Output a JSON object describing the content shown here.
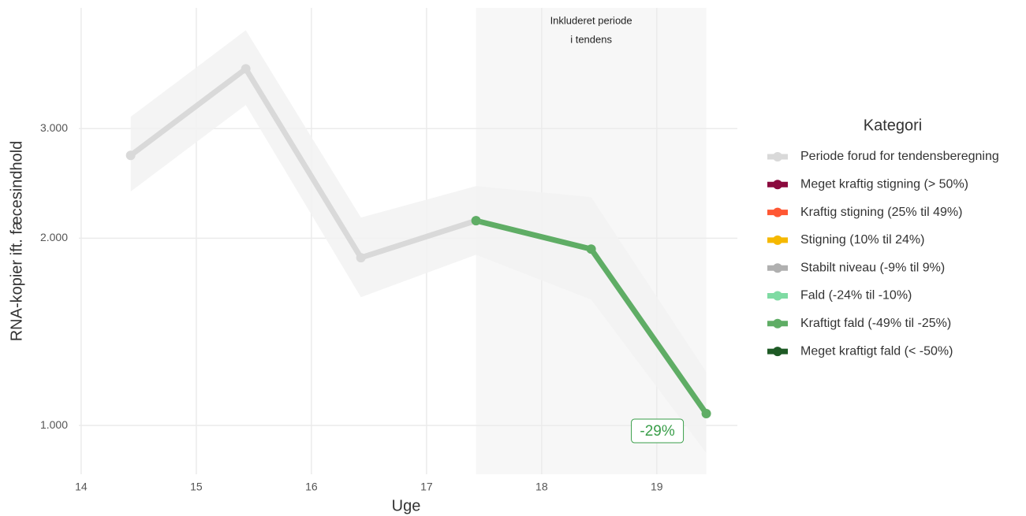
{
  "chart_data": {
    "type": "line",
    "x_label": "Uge",
    "y_label": "RNA-kopier ift. fæcesindhold",
    "x": [
      14.43,
      15.43,
      16.43,
      17.43,
      18.43,
      19.43
    ],
    "xlim": [
      13.98,
      19.7
    ],
    "xticks": [
      14,
      15,
      16,
      17,
      18,
      19
    ],
    "ylim": [
      835,
      4690
    ],
    "y_scale": "log",
    "yticks": [
      {
        "value": 1000,
        "label": "1.000"
      },
      {
        "value": 2000,
        "label": "2.000"
      },
      {
        "value": 3000,
        "label": "3.000"
      }
    ],
    "grid": true,
    "band": {
      "color": "#f2f2f2",
      "upper": [
        3134,
        4317,
        2159,
        2425,
        2328,
        1219
      ],
      "lower": [
        2377,
        3274,
        1608,
        1881,
        1594,
        903
      ]
    },
    "highlight": {
      "xlim": [
        17.43,
        19.43
      ],
      "color": "#f7f7f7",
      "label": [
        "Inkluderet periode",
        "i tendens"
      ]
    },
    "annotation": {
      "text": "-29%",
      "color": "#3a9e4a"
    },
    "legend_title": "Kategori",
    "series": [
      {
        "name": "Periode forud for tendensberegning",
        "color": "#d9d9d9",
        "values": [
          2717,
          3743,
          1861,
          2134,
          null,
          null
        ]
      },
      {
        "name": "Meget kraftig stigning (> 50%)",
        "color": "#8b0a3e",
        "values": [
          null,
          null,
          null,
          null,
          null,
          null
        ]
      },
      {
        "name": "Kraftig stigning (25% til 49%)",
        "color": "#ff5733",
        "values": [
          null,
          null,
          null,
          null,
          null,
          null
        ]
      },
      {
        "name": "Stigning (10% til 24%)",
        "color": "#f5b800",
        "values": [
          null,
          null,
          null,
          null,
          null,
          null
        ]
      },
      {
        "name": "Stabilt niveau (-9% til 9%)",
        "color": "#b0b0b0",
        "values": [
          null,
          null,
          null,
          null,
          null,
          null
        ]
      },
      {
        "name": "Fald (-24% til -10%)",
        "color": "#7fdba3",
        "values": [
          null,
          null,
          null,
          null,
          null,
          null
        ]
      },
      {
        "name": "Kraftigt fald (-49% til -25%)",
        "color": "#5fad65",
        "values": [
          null,
          null,
          null,
          2134,
          1921,
          1045
        ]
      },
      {
        "name": "Meget kraftigt fald (< -50%)",
        "color": "#1e5a25",
        "values": [
          null,
          null,
          null,
          null,
          null,
          null
        ]
      }
    ]
  }
}
